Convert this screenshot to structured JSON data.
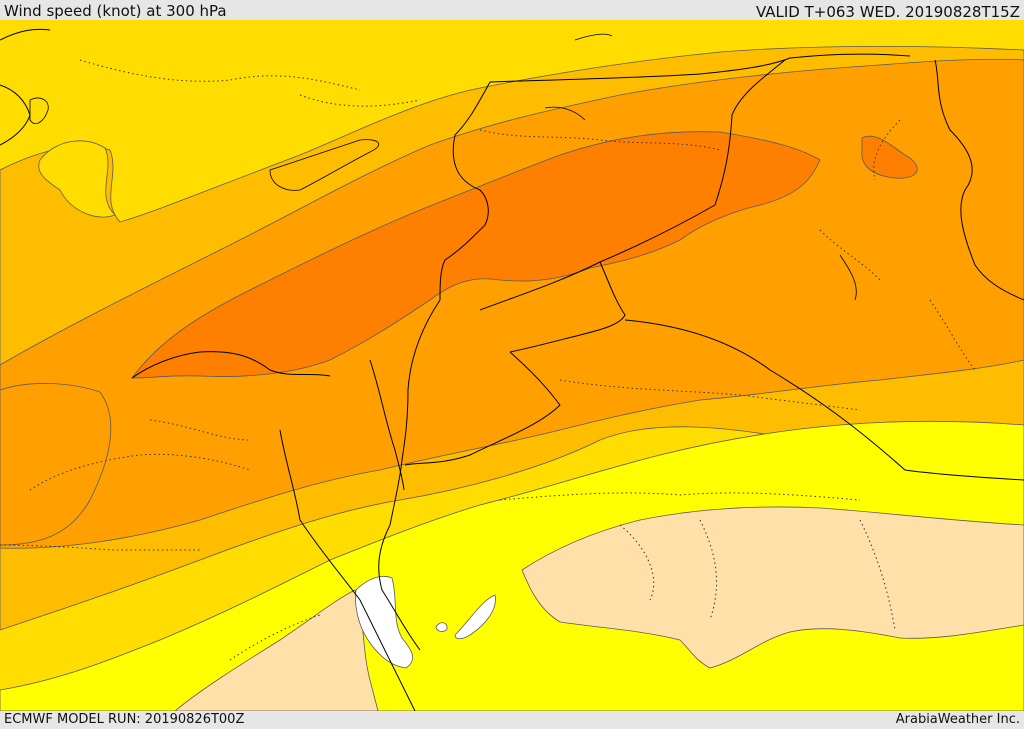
{
  "header": {
    "title": "Wind speed (knot) at 300 hPa",
    "valid": "VALID T+063 WED. 20190828T15Z"
  },
  "footer": {
    "model_run": "ECMWF MODEL RUN: 20190826T00Z",
    "credit": "ArabiaWeather Inc."
  },
  "map": {
    "colors": {
      "sea_base": "#ffdd00",
      "band_60": "#ffbd00",
      "band_70": "#ffa000",
      "band_80": "#ff8000",
      "band_40": "#ffff00",
      "band_30": "#fee0a8",
      "white_pocket": "#ffffff",
      "contour": "#5a5a5a",
      "border": "#000000"
    }
  }
}
